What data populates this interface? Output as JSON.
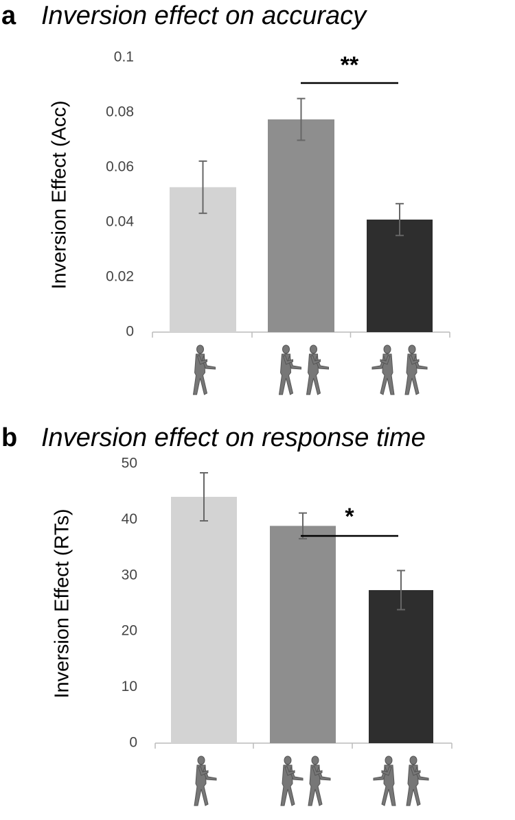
{
  "chart_data": [
    {
      "type": "bar",
      "panel": "a",
      "title": "Inversion effect on accuracy",
      "ylabel": "Inversion Effect (Acc)",
      "categories": [
        null,
        null,
        null
      ],
      "values": [
        0.0528,
        0.0775,
        0.041
      ],
      "errors": [
        0.0095,
        0.0076,
        0.0058
      ],
      "colors": [
        "#d3d3d3",
        "#8e8e8e",
        "#2e2e2e"
      ],
      "ylim": [
        0,
        0.1
      ],
      "yticks": [
        0,
        0.02,
        0.04,
        0.06,
        0.08,
        0.1
      ],
      "annotation": "**"
    },
    {
      "type": "bar",
      "panel": "b",
      "title": "Inversion effect on response time",
      "ylabel": "Inversion Effect (RTs)",
      "categories": [
        null,
        null,
        null
      ],
      "values": [
        44.1,
        38.9,
        27.4
      ],
      "errors": [
        4.3,
        2.3,
        3.5
      ],
      "colors": [
        "#d3d3d3",
        "#8e8e8e",
        "#2e2e2e"
      ],
      "ylim": [
        0,
        50
      ],
      "yticks": [
        0,
        10,
        20,
        30,
        40,
        50
      ],
      "annotation": "*"
    }
  ]
}
